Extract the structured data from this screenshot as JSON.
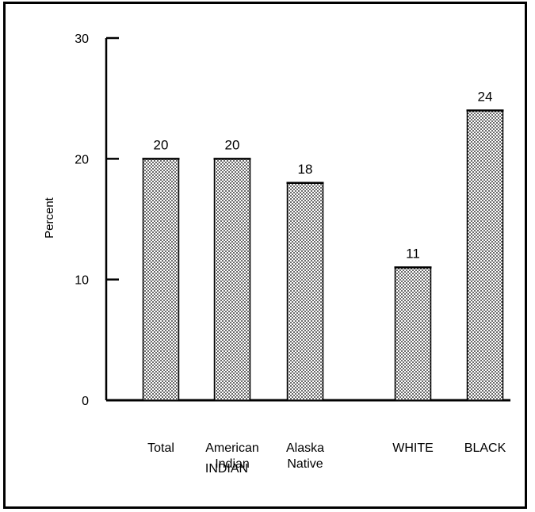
{
  "chart_data": {
    "type": "bar",
    "ylabel": "Percent",
    "ylim": [
      0,
      30
    ],
    "yticks": [
      0,
      10,
      20,
      30
    ],
    "categories": [
      [
        "Total"
      ],
      [
        "American",
        "Indian"
      ],
      [
        "Alaska",
        "Native"
      ],
      [
        "WHITE"
      ],
      [
        "BLACK"
      ]
    ],
    "values": [
      20,
      20,
      18,
      11,
      24
    ],
    "value_labels": [
      "20",
      "20",
      "18",
      "11",
      "24"
    ],
    "group_label": "INDIAN",
    "grid": false,
    "bar_pattern": "dotted"
  }
}
